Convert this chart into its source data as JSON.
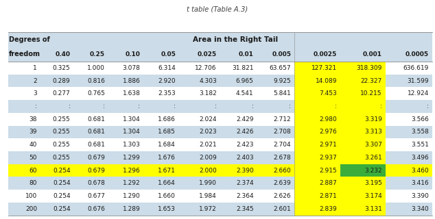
{
  "title": "t table (Table A.3)",
  "header1": "Degrees of",
  "header2": "freedom",
  "area_header": "Area in the Right Tail",
  "col_headers": [
    "0.40",
    "0.25",
    "0.10",
    "0.05",
    "0.025",
    "0.01",
    "0.005",
    "0.0025",
    "0.001",
    "0.0005"
  ],
  "rows": [
    [
      "1",
      "0.325",
      "1.000",
      "3.078",
      "6.314",
      "12.706",
      "31.821",
      "63.657",
      "127.321",
      "318.309",
      "636.619"
    ],
    [
      "2",
      "0.289",
      "0.816",
      "1.886",
      "2.920",
      "4.303",
      "6.965",
      "9.925",
      "14.089",
      "22.327",
      "31.599"
    ],
    [
      "3",
      "0.277",
      "0.765",
      "1.638",
      "2.353",
      "3.182",
      "4.541",
      "5.841",
      "7.453",
      "10.215",
      "12.924"
    ],
    [
      ":",
      ":",
      ":",
      ":",
      ":",
      ":",
      ":",
      ":",
      ":",
      ":",
      ":"
    ],
    [
      "38",
      "0.255",
      "0.681",
      "1.304",
      "1.686",
      "2.024",
      "2.429",
      "2.712",
      "2.980",
      "3.319",
      "3.566"
    ],
    [
      "39",
      "0.255",
      "0.681",
      "1.304",
      "1.685",
      "2.023",
      "2.426",
      "2.708",
      "2.976",
      "3.313",
      "3.558"
    ],
    [
      "40",
      "0.255",
      "0.681",
      "1.303",
      "1.684",
      "2.021",
      "2.423",
      "2.704",
      "2.971",
      "3.307",
      "3.551"
    ],
    [
      "50",
      "0.255",
      "0.679",
      "1.299",
      "1.676",
      "2.009",
      "2.403",
      "2.678",
      "2.937",
      "3.261",
      "3.496"
    ],
    [
      "60",
      "0.254",
      "0.679",
      "1.296",
      "1.671",
      "2.000",
      "2.390",
      "2.660",
      "2.915",
      "3.232",
      "3.460"
    ],
    [
      "80",
      "0.254",
      "0.678",
      "1.292",
      "1.664",
      "1.990",
      "2.374",
      "2.639",
      "2.887",
      "3.195",
      "3.416"
    ],
    [
      "100",
      "0.254",
      "0.677",
      "1.290",
      "1.660",
      "1.984",
      "2.364",
      "2.626",
      "2.871",
      "3.174",
      "3.390"
    ],
    [
      "200",
      "0.254",
      "0.676",
      "1.289",
      "1.653",
      "1.972",
      "2.345",
      "2.601",
      "2.839",
      "3.131",
      "3.340"
    ]
  ],
  "blue_rows": [
    1,
    3,
    5,
    7,
    9,
    11
  ],
  "yellow_row": 8,
  "green_cell_row": 8,
  "green_cell_col": 9,
  "yellow_cols": [
    8,
    9
  ],
  "bg_color": "#ffffff",
  "blue_bg": "#ccdce8",
  "header_blue_bg": "#ccdce8",
  "yellow_bg": "#ffff00",
  "green_bg": "#3aad3a",
  "text_color": "#1a1a1a",
  "title_color": "#444444",
  "line_color": "#888888"
}
